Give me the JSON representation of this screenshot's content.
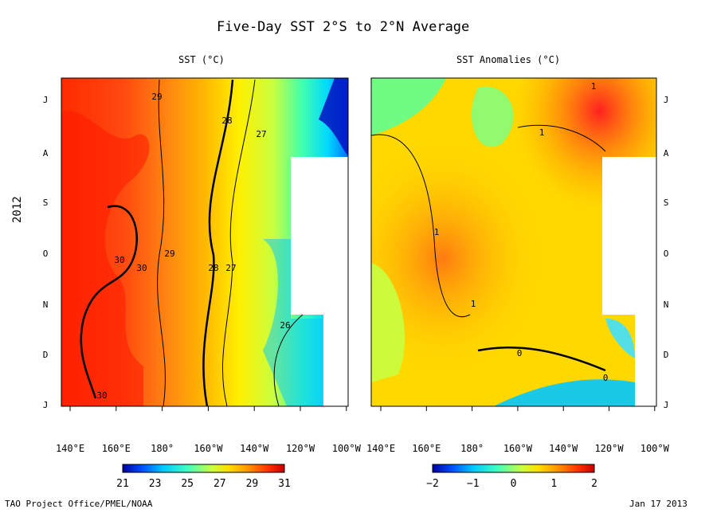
{
  "title": "Five-Day SST  2°S to 2°N Average",
  "year_label": "2012",
  "credit": "TAO Project Office/PMEL/NOAA",
  "date": "Jan 17 2013",
  "chart_data": [
    {
      "type": "heatmap",
      "title": "SST (°C)",
      "x_ticks": [
        "140°E",
        "160°E",
        "180°",
        "160°W",
        "140°W",
        "120°W",
        "100°W"
      ],
      "y_ticks": [
        "J",
        "A",
        "S",
        "O",
        "N",
        "D",
        "J"
      ],
      "colorbar_ticks": [
        "21",
        "23",
        "25",
        "27",
        "29",
        "31"
      ],
      "colorbar_range": [
        21,
        31
      ],
      "contour_labels": [
        "29",
        "28",
        "27",
        "30",
        "30",
        "29",
        "28",
        "27",
        "26",
        "30"
      ],
      "colors": [
        "#0000a0",
        "#0050ff",
        "#00c8ff",
        "#40ffc0",
        "#c8ff40",
        "#ffe000",
        "#ff9000",
        "#ff3000",
        "#c80000"
      ]
    },
    {
      "type": "heatmap",
      "title": "SST Anomalies (°C)",
      "x_ticks": [
        "140°E",
        "160°E",
        "180°",
        "160°W",
        "140°W",
        "120°W",
        "100°W"
      ],
      "y_ticks": [
        "J",
        "A",
        "S",
        "O",
        "N",
        "D",
        "J"
      ],
      "colorbar_ticks": [
        "−2",
        "−1",
        "0",
        "1",
        "2"
      ],
      "colorbar_range": [
        -2,
        2
      ],
      "contour_labels": [
        "1",
        "1",
        "1",
        "1",
        "0",
        "0"
      ],
      "colors": [
        "#0000a0",
        "#0050ff",
        "#00c8ff",
        "#40ffc0",
        "#c8ff40",
        "#ffe000",
        "#ff9000",
        "#ff3000",
        "#c80000"
      ]
    }
  ]
}
